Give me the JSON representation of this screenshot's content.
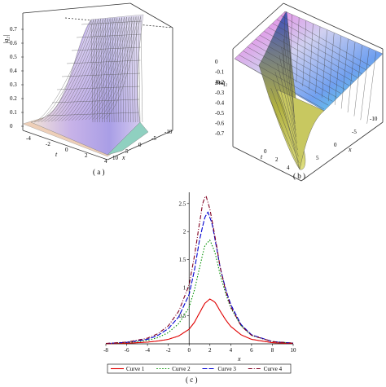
{
  "panels": {
    "a": {
      "caption": "( a )",
      "z_label": "|q₂|",
      "x_label": "x",
      "t_label": "t",
      "z_ticks": [
        "0.7",
        "0.6",
        "0.5",
        "0.4",
        "0.3",
        "0.2",
        "0.1",
        "0"
      ],
      "t_ticks": [
        "-4",
        "-2",
        "0",
        "2",
        "4"
      ],
      "x_ticks": [
        "10",
        "5",
        "0",
        "-5",
        "-10"
      ]
    },
    "b": {
      "caption": "( b )",
      "z_label": "Imq₂",
      "x_label": "x",
      "t_label": "t",
      "z_ticks": [
        "0",
        "-0.1",
        "-0.2",
        "-0.3",
        "-0.4",
        "-0.5",
        "-0.6",
        "-0.7"
      ],
      "t_ticks": [
        "0",
        "2",
        "4"
      ],
      "x_ticks": [
        "5",
        "0",
        "-5",
        "-10"
      ]
    },
    "c": {
      "caption": "( c )"
    }
  },
  "chart_data": {
    "type": "line",
    "xlabel": "x",
    "ylabel": "",
    "xlim": [
      -8,
      10
    ],
    "ylim": [
      0,
      2.7
    ],
    "x_ticks": [
      -8,
      -6,
      -4,
      -2,
      0,
      2,
      4,
      6,
      8,
      10
    ],
    "y_ticks": [
      0.5,
      1,
      1.5,
      2,
      2.5
    ],
    "legend_position": "bottom",
    "series": [
      {
        "name": "Curve 1",
        "color": "#e00000",
        "dash": "",
        "center": 2.0,
        "peak": 0.8,
        "x": [
          -8,
          -6,
          -4,
          -3,
          -2,
          -1,
          0,
          0.5,
          1,
          1.5,
          2,
          2.5,
          3,
          3.5,
          4,
          5,
          6,
          8,
          10
        ],
        "y": [
          0.003,
          0.01,
          0.03,
          0.05,
          0.08,
          0.14,
          0.26,
          0.38,
          0.55,
          0.72,
          0.8,
          0.74,
          0.58,
          0.43,
          0.31,
          0.16,
          0.08,
          0.02,
          0.006
        ]
      },
      {
        "name": "Curve 2",
        "color": "#009000",
        "dash": "1.5,2",
        "center": 2.0,
        "peak": 1.85,
        "x": [
          -8,
          -6,
          -4,
          -3,
          -2,
          -1,
          0,
          0.5,
          1,
          1.5,
          2,
          2.5,
          3,
          3.5,
          4,
          5,
          6,
          8,
          10
        ],
        "y": [
          0.005,
          0.02,
          0.06,
          0.11,
          0.2,
          0.36,
          0.65,
          0.95,
          1.35,
          1.75,
          1.85,
          1.62,
          1.22,
          0.9,
          0.64,
          0.32,
          0.15,
          0.04,
          0.012
        ]
      },
      {
        "name": "Curve 3",
        "color": "#0000d0",
        "dash": "6,2",
        "center": 1.8,
        "peak": 2.35,
        "x": [
          -8,
          -6,
          -4,
          -3,
          -2,
          -1,
          0,
          0.5,
          1,
          1.5,
          1.8,
          2.2,
          2.5,
          3,
          3.5,
          4,
          5,
          6,
          8,
          10
        ],
        "y": [
          0.006,
          0.025,
          0.08,
          0.15,
          0.27,
          0.48,
          0.88,
          1.3,
          1.85,
          2.25,
          2.35,
          2.15,
          1.85,
          1.35,
          0.98,
          0.7,
          0.34,
          0.16,
          0.04,
          0.012
        ]
      },
      {
        "name": "Curve 4",
        "color": "#800020",
        "dash": "5,2,1,2",
        "center": 1.6,
        "peak": 2.65,
        "x": [
          -8,
          -6,
          -4,
          -3,
          -2,
          -1,
          0,
          0.5,
          1,
          1.3,
          1.6,
          2,
          2.5,
          3,
          3.5,
          4,
          5,
          6,
          8,
          10
        ],
        "y": [
          0.007,
          0.03,
          0.1,
          0.18,
          0.32,
          0.58,
          1.05,
          1.55,
          2.15,
          2.5,
          2.65,
          2.4,
          1.9,
          1.35,
          0.95,
          0.66,
          0.32,
          0.15,
          0.04,
          0.012
        ]
      }
    ]
  }
}
